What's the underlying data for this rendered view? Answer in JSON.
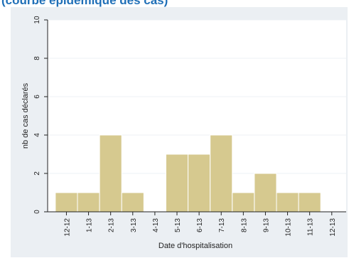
{
  "header": {
    "text": "(courbe épidémique des cas)"
  },
  "colors": {
    "bar_fill": "#d6c98f",
    "bar_stroke": "#ffffff",
    "plot_bg": "#ffffff",
    "outer_bg": "#ebeff3",
    "grid": "#eef1f4",
    "axis": "#222222",
    "header": "#1f6fb7"
  },
  "chart_data": {
    "type": "bar",
    "title": "",
    "xlabel": "Date d'hospitalisation",
    "ylabel": "nb de cas déclarés",
    "categories": [
      "12-12",
      "1-13",
      "2-13",
      "3-13",
      "4-13",
      "5-13",
      "6-13",
      "7-13",
      "8-13",
      "9-13",
      "10-13",
      "11-13",
      "12-13"
    ],
    "values": [
      1,
      1,
      4,
      1,
      0,
      3,
      3,
      4,
      1,
      2,
      1,
      1,
      0
    ],
    "ylim": [
      0,
      10
    ],
    "yticks": [
      0,
      2,
      4,
      6,
      8,
      10
    ],
    "grid": true
  }
}
